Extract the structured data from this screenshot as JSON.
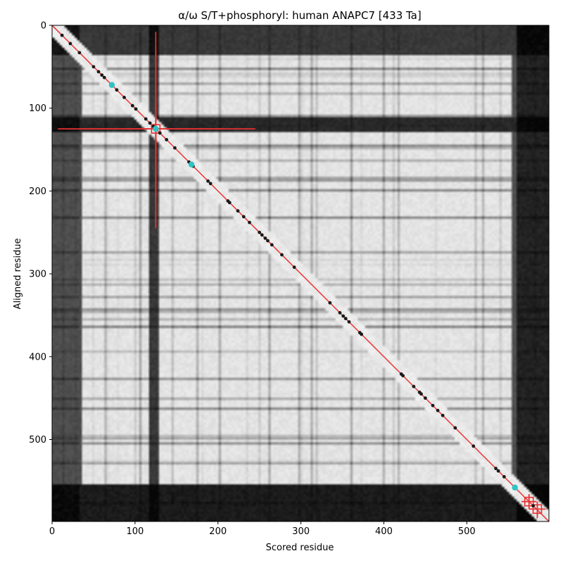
{
  "chart_data": {
    "type": "heatmap",
    "title": "α/ω S/T+phosphoryl: human ANAPC7 [433 Ta]",
    "xlabel": "Scored residue",
    "ylabel": "Aligned residue",
    "xlim": [
      0,
      599
    ],
    "ylim": [
      599,
      0
    ],
    "x_ticks": [
      0,
      100,
      200,
      300,
      400,
      500
    ],
    "y_ticks": [
      0,
      100,
      200,
      300,
      400,
      500
    ],
    "colormap": "grayscale",
    "grid": false,
    "diagonal": {
      "from": 0,
      "to": 599,
      "color": "#e84040"
    },
    "heatmap_bands": {
      "dark_columns": [
        [
          0,
          32,
          0.35
        ],
        [
          118,
          128,
          0.25
        ],
        [
          560,
          599,
          0.15
        ]
      ],
      "dark_rows": [
        [
          0,
          35,
          0.25
        ],
        [
          110,
          130,
          0.18
        ],
        [
          555,
          599,
          0.1
        ]
      ],
      "light_block": [
        35,
        555
      ]
    },
    "markers": {
      "dark_points": [
        12,
        22,
        33,
        50,
        56,
        60,
        63,
        78,
        87,
        97,
        101,
        113,
        118,
        122,
        130,
        138,
        148,
        165,
        170,
        188,
        191,
        212,
        214,
        224,
        231,
        238,
        250,
        253,
        257,
        260,
        265,
        277,
        292,
        335,
        347,
        351,
        354,
        358,
        371,
        373,
        421,
        423,
        436,
        443,
        445,
        450,
        459,
        465,
        471,
        486,
        508,
        535,
        538,
        545,
        580
      ],
      "cyan_points": [
        72,
        125,
        168,
        558
      ],
      "dark_color": "#1a1a1a",
      "cyan_color": "#2ec4c4"
    },
    "red_crosses": [
      {
        "x": 125,
        "y": 125,
        "hbars": [
          [
            7,
            245
          ],
          [
            35,
            205
          ],
          [
            90,
            155
          ]
        ],
        "vbars": [
          [
            8,
            245
          ],
          [
            30,
            205
          ],
          [
            95,
            165
          ]
        ]
      },
      {
        "x": 575,
        "y": 575,
        "hbars": [
          [
            566,
            584
          ]
        ],
        "vbars": [
          [
            566,
            584
          ]
        ]
      },
      {
        "x": 585,
        "y": 584,
        "hbars": [
          [
            575,
            595
          ]
        ],
        "vbars": [
          [
            575,
            595
          ]
        ]
      }
    ],
    "cross_color": "#e83030"
  }
}
